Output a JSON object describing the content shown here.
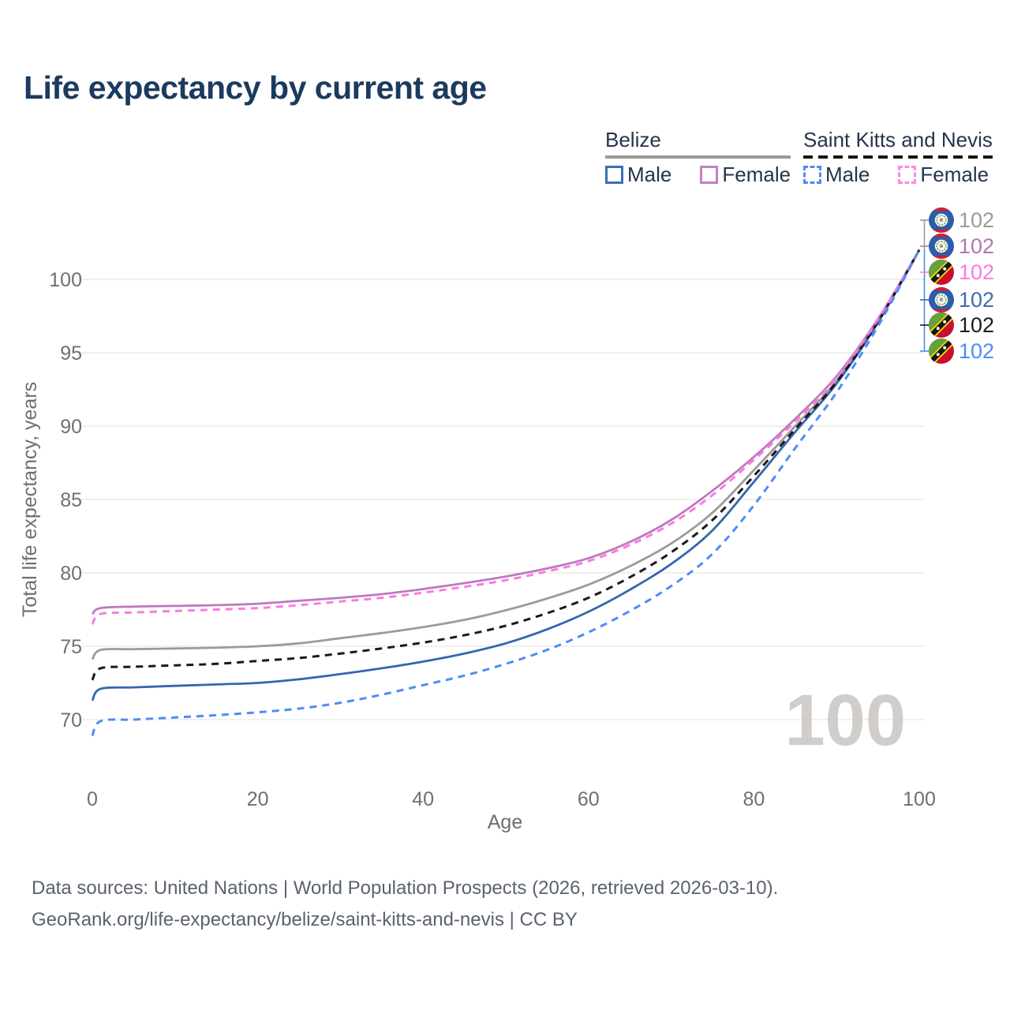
{
  "title": "Life expectancy by current age",
  "legend": {
    "groups": [
      {
        "country": "Belize",
        "underline_style": "solid",
        "underline_color": "#9b9b9b",
        "items": [
          {
            "label": "Male",
            "color": "#3d6eb4",
            "dashed": false
          },
          {
            "label": "Female",
            "color": "#c481c1",
            "dashed": false
          }
        ]
      },
      {
        "country": "Saint Kitts and Nevis",
        "underline_style": "dashed",
        "underline_color": "#161616",
        "items": [
          {
            "label": "Male",
            "color": "#4f8df2",
            "dashed": true
          },
          {
            "label": "Female",
            "color": "#fa8ae4",
            "dashed": true
          }
        ]
      }
    ]
  },
  "chart_data": {
    "type": "line",
    "title": "Life expectancy by current age",
    "xlabel": "Age",
    "ylabel": "Total life expectancy, years",
    "xlim": [
      0,
      100
    ],
    "ylim": [
      68,
      105
    ],
    "xticks": [
      0,
      20,
      40,
      60,
      80,
      100
    ],
    "yticks": [
      70,
      75,
      80,
      85,
      90,
      95,
      100
    ],
    "grid": "horizontal",
    "legend_position": "top-right",
    "age_counter_watermark": "100",
    "x": [
      0,
      1,
      5,
      10,
      15,
      20,
      25,
      30,
      35,
      40,
      45,
      50,
      55,
      60,
      65,
      70,
      75,
      80,
      85,
      90,
      95,
      100
    ],
    "series": [
      {
        "name": "Belize",
        "country": "Belize",
        "sex": "Both",
        "color": "#9b9b9b",
        "dash": "solid",
        "values": [
          74.1,
          74.75,
          74.8,
          74.85,
          74.9,
          75.0,
          75.2,
          75.55,
          75.9,
          76.3,
          76.8,
          77.45,
          78.25,
          79.2,
          80.45,
          82.0,
          84.1,
          87.0,
          90.0,
          93.1,
          97.2,
          102
        ]
      },
      {
        "name": "Belize Female",
        "country": "Belize",
        "sex": "Female",
        "color": "#bd7abd",
        "dash": "solid",
        "values": [
          77.2,
          77.6,
          77.7,
          77.75,
          77.8,
          77.9,
          78.1,
          78.3,
          78.55,
          78.9,
          79.3,
          79.75,
          80.3,
          81.0,
          82.1,
          83.6,
          85.6,
          87.9,
          90.5,
          93.4,
          97.3,
          102
        ]
      },
      {
        "name": "Belize Male",
        "country": "Belize",
        "sex": "Male",
        "color": "#3566ae",
        "dash": "solid",
        "values": [
          71.3,
          72.1,
          72.2,
          72.3,
          72.4,
          72.5,
          72.75,
          73.1,
          73.5,
          73.95,
          74.5,
          75.2,
          76.15,
          77.35,
          78.85,
          80.6,
          82.9,
          86.2,
          89.6,
          92.9,
          97.05,
          102
        ]
      },
      {
        "name": "Saint Kitts and Nevis",
        "country": "Saint Kitts and Nevis",
        "sex": "Both",
        "color": "#1a1a1a",
        "dash": "dashed",
        "values": [
          72.7,
          73.5,
          73.6,
          73.7,
          73.8,
          74.0,
          74.2,
          74.5,
          74.85,
          75.25,
          75.75,
          76.4,
          77.25,
          78.3,
          79.7,
          81.4,
          83.6,
          86.6,
          89.8,
          93.0,
          97.1,
          102
        ]
      },
      {
        "name": "Saint Kitts and Nevis Female",
        "country": "Saint Kitts and Nevis",
        "sex": "Female",
        "color": "#fb7ae4",
        "dash": "dashed",
        "values": [
          76.5,
          77.2,
          77.3,
          77.4,
          77.5,
          77.6,
          77.8,
          78.05,
          78.3,
          78.65,
          79.05,
          79.5,
          80.1,
          80.8,
          81.9,
          83.35,
          85.3,
          87.7,
          90.3,
          93.3,
          97.25,
          102
        ]
      },
      {
        "name": "Saint Kitts and Nevis Male",
        "country": "Saint Kitts and Nevis",
        "sex": "Male",
        "color": "#4d8df5",
        "dash": "dashed",
        "values": [
          68.9,
          69.9,
          70.0,
          70.15,
          70.3,
          70.5,
          70.75,
          71.15,
          71.7,
          72.35,
          73.0,
          73.8,
          74.75,
          75.95,
          77.4,
          79.1,
          81.3,
          84.6,
          88.5,
          92.3,
          96.8,
          102
        ]
      }
    ],
    "end_labels": [
      {
        "value": "102",
        "flag": "belize",
        "series": "Belize",
        "color": "#9b9b9b"
      },
      {
        "value": "102",
        "flag": "belize",
        "series": "Belize Female",
        "color": "#b276b2"
      },
      {
        "value": "102",
        "flag": "skn",
        "series": "Saint Kitts and Nevis Female",
        "color": "#fb7ae4"
      },
      {
        "value": "102",
        "flag": "belize",
        "series": "Belize Male",
        "color": "#3e6cb0"
      },
      {
        "value": "102",
        "flag": "skn",
        "series": "Saint Kitts and Nevis",
        "color": "#1b1b1b"
      },
      {
        "value": "102",
        "flag": "skn",
        "series": "Saint Kitts and Nevis Male",
        "color": "#4d8df5"
      }
    ]
  },
  "footer": {
    "line1": "Data sources: United Nations | World Population Prospects (2026, retrieved 2026-03-10).",
    "line2": "GeoRank.org/life-expectancy/belize/saint-kitts-and-nevis | CC BY"
  }
}
